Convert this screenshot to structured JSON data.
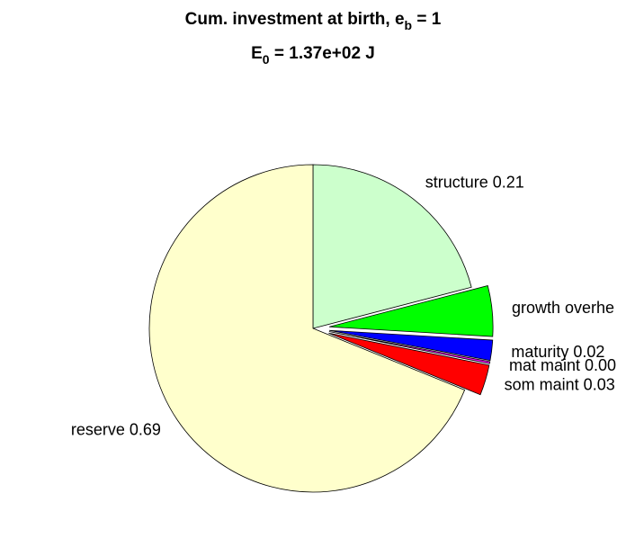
{
  "chart_data": {
    "type": "pie",
    "title": [
      {
        "text": "Cum. investment at birth, e",
        "sub": "b",
        "after": " = 1"
      },
      {
        "text": "E",
        "sub": "0",
        "after": " = 1.37e+02 J"
      }
    ],
    "categories": [
      "structure",
      "growth overhead",
      "maturity",
      "mat maint",
      "som maint",
      "reserve"
    ],
    "values": [
      0.21,
      0.05,
      0.02,
      0.002,
      0.03,
      0.69
    ],
    "value_labels": [
      "structure 0.21",
      "growth overhe",
      "maturity 0.02",
      "mat maint 0.00",
      "som maint 0.03",
      "reserve 0.69"
    ],
    "colors": [
      "#ccffcc",
      "#00ff00",
      "#0000ff",
      "#ff00ff",
      "#ff0000",
      "#ffffcc"
    ],
    "explode": [
      false,
      true,
      true,
      true,
      true,
      false
    ]
  }
}
